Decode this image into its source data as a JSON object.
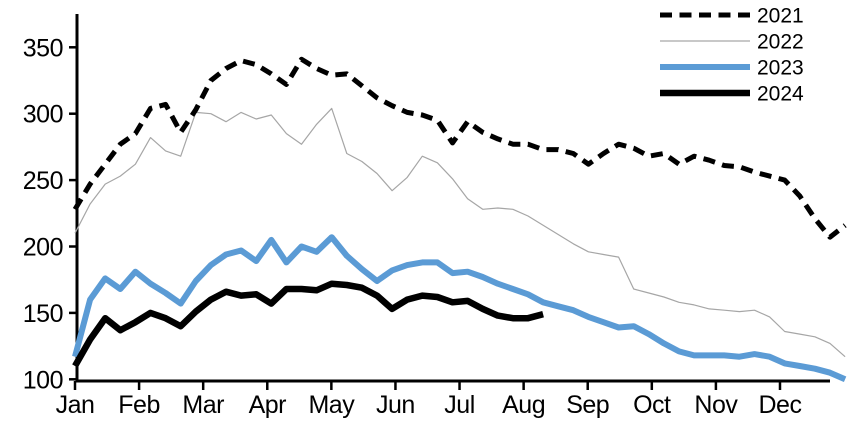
{
  "chart_data": {
    "type": "line",
    "title": "",
    "x_unit": "weekly",
    "grid": "off",
    "x_axis": {
      "tick_labels": [
        "Jan",
        "Feb",
        "Mar",
        "Apr",
        "May",
        "Jun",
        "Jul",
        "Aug",
        "Sep",
        "Oct",
        "Nov",
        "Dec"
      ]
    },
    "y_axis": {
      "ticks": [
        100,
        150,
        200,
        250,
        300,
        350
      ],
      "range": [
        100,
        375
      ]
    },
    "legend": {
      "position": "top-right",
      "entries": [
        "2021",
        "2022",
        "2023",
        "2024"
      ]
    },
    "series": [
      {
        "name": "2021",
        "color": "#000000",
        "style": "dashed",
        "width": 5,
        "values": [
          228,
          247,
          262,
          277,
          285,
          304,
          307,
          286,
          303,
          325,
          334,
          340,
          337,
          330,
          322,
          341,
          334,
          329,
          330,
          321,
          312,
          306,
          301,
          299,
          295,
          278,
          294,
          286,
          281,
          277,
          277,
          273,
          273,
          270,
          262,
          270,
          277,
          274,
          268,
          270,
          262,
          268,
          265,
          261,
          260,
          256,
          253,
          250,
          238,
          221,
          207,
          216
        ]
      },
      {
        "name": "2022",
        "color": "#a6a6a6",
        "style": "solid-thin",
        "width": 1.2,
        "values": [
          210,
          232,
          247,
          253,
          262,
          282,
          272,
          268,
          301,
          300,
          294,
          301,
          296,
          299,
          285,
          277,
          292,
          304,
          270,
          264,
          255,
          242,
          252,
          268,
          263,
          251,
          236,
          228,
          229,
          228,
          223,
          216,
          209,
          202,
          196,
          194,
          192,
          168,
          165,
          162,
          158,
          156,
          153,
          152,
          151,
          152,
          147,
          136,
          134,
          132,
          127,
          117
        ]
      },
      {
        "name": "2023",
        "color": "#5b9bd5",
        "style": "solid-thick",
        "width": 6,
        "values": [
          117,
          160,
          176,
          168,
          181,
          172,
          165,
          157,
          174,
          186,
          194,
          197,
          189,
          205,
          188,
          200,
          196,
          207,
          193,
          183,
          174,
          182,
          186,
          188,
          188,
          180,
          181,
          177,
          172,
          168,
          164,
          158,
          155,
          152,
          147,
          143,
          139,
          140,
          134,
          127,
          121,
          118,
          118,
          118,
          117,
          119,
          117,
          112,
          110,
          108,
          105,
          100
        ]
      },
      {
        "name": "2024",
        "color": "#000000",
        "style": "solid-thick",
        "width": 6.5,
        "values": [
          110,
          130,
          146,
          137,
          143,
          150,
          146,
          140,
          151,
          160,
          166,
          163,
          164,
          157,
          168,
          168,
          167,
          172,
          171,
          169,
          163,
          153,
          160,
          163,
          162,
          158,
          159,
          153,
          148,
          146,
          146,
          149
        ]
      }
    ]
  },
  "colors": {
    "background": "#ffffff",
    "axis": "#000000",
    "series_2021": "#000000",
    "series_2022": "#a6a6a6",
    "series_2023": "#5b9bd5",
    "series_2024": "#000000"
  }
}
